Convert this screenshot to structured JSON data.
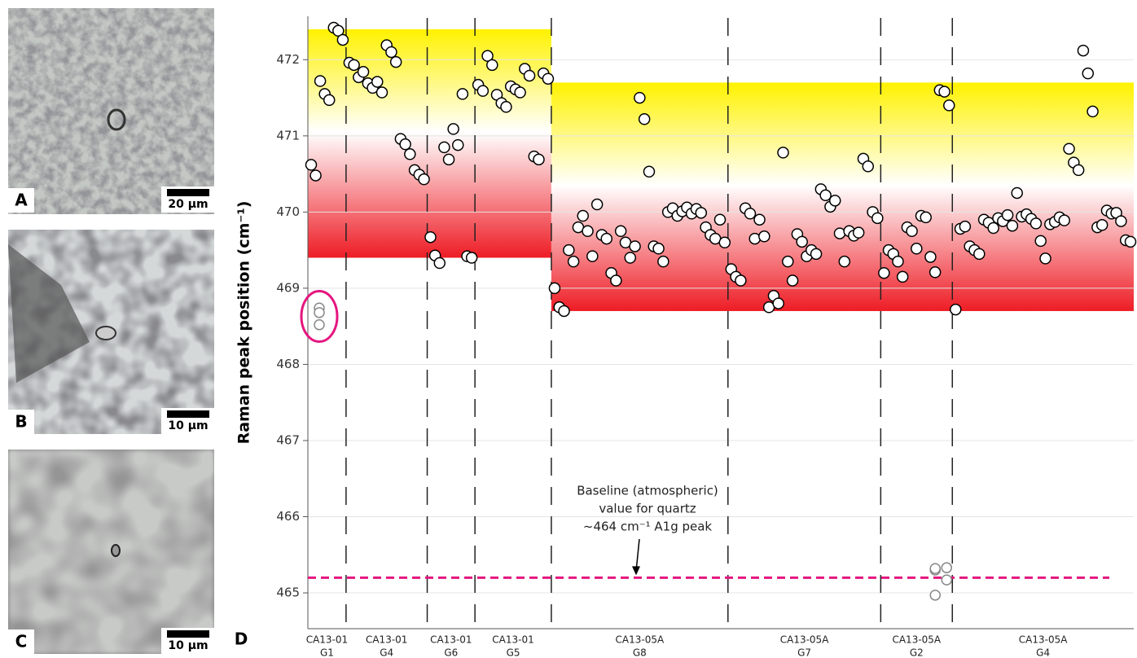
{
  "panels": [
    {
      "label": "A",
      "scale": "20 μm"
    },
    {
      "label": "B",
      "scale": "10 μm"
    },
    {
      "label": "C",
      "scale": "10 μm"
    }
  ],
  "chart_data": {
    "type": "scatter",
    "panel_label": "D",
    "y_label": "Raman peak position (cm⁻¹)",
    "ylim": [
      464.53,
      472.57
    ],
    "yticks": [
      465,
      466,
      467,
      468,
      469,
      470,
      471,
      472
    ],
    "grid": true,
    "band_colors": [
      "#fff200",
      "#ffffff",
      "#ee1c25"
    ],
    "baseline": {
      "value": 465.2,
      "color": "#e5167f",
      "label": [
        "Baseline (atmospheric)",
        "value for quartz",
        "~464 cm⁻¹ A1g peak"
      ]
    },
    "samples": [
      {
        "band": [
          469.4,
          472.4
        ],
        "groups": [
          {
            "label": "CA13-01",
            "name": "G1",
            "values": [
              470.62,
              470.48,
              471.72,
              471.55,
              471.47,
              472.42,
              472.38,
              472.26
            ],
            "outliers": [
              468.74,
              468.68,
              468.52
            ]
          },
          {
            "label": "CA13-01",
            "name": "G4",
            "values": [
              471.96,
              471.93,
              471.77,
              471.84,
              471.69,
              471.63,
              471.71,
              471.57,
              472.19,
              472.1,
              471.97,
              470.96,
              470.89,
              470.76,
              470.55,
              470.49,
              470.43
            ]
          },
          {
            "label": "CA13-01",
            "name": "G6",
            "values": [
              469.67,
              469.43,
              469.33,
              470.85,
              470.69,
              471.09,
              470.88,
              471.55,
              469.42,
              469.4
            ]
          },
          {
            "label": "CA13-01",
            "name": "G5",
            "values": [
              471.67,
              471.59,
              472.05,
              471.93,
              471.54,
              471.43,
              471.38,
              471.65,
              471.61,
              471.57,
              471.88,
              471.79,
              470.73,
              470.69,
              471.82,
              471.75
            ]
          }
        ]
      },
      {
        "band": [
          468.7,
          471.7
        ],
        "groups": [
          {
            "label": "CA13-05A",
            "name": "G8",
            "values": [
              469.0,
              468.75,
              468.7,
              469.5,
              469.35,
              469.8,
              469.95,
              469.75,
              469.42,
              470.1,
              469.7,
              469.65,
              469.2,
              469.1,
              469.75,
              469.6,
              469.4,
              469.55,
              471.5,
              471.22,
              470.53,
              469.55,
              469.52,
              469.35,
              470.0,
              470.05,
              469.95,
              470.01,
              470.06,
              469.98,
              470.04,
              469.99,
              469.8,
              469.7,
              469.65,
              469.9,
              469.6
            ]
          },
          {
            "label": "CA13-05A",
            "name": "G7",
            "values": [
              469.25,
              469.15,
              469.1,
              470.05,
              469.98,
              469.65,
              469.9,
              469.68,
              468.75,
              468.9,
              468.8,
              470.78,
              469.35,
              469.1,
              469.71,
              469.61,
              469.42,
              469.5,
              469.45,
              470.3,
              470.22,
              470.07,
              470.15,
              469.72,
              469.35,
              469.75,
              469.69,
              469.73,
              470.7,
              470.6,
              470.0,
              469.92
            ]
          },
          {
            "label": "CA13-05A",
            "name": "G2",
            "values": [
              469.2,
              469.5,
              469.45,
              469.35,
              469.15,
              469.8,
              469.75,
              469.52,
              469.95,
              469.93,
              469.41,
              469.21,
              471.6,
              471.58,
              471.4
            ],
            "outliers": [
              465.3,
              465.17,
              465.32,
              465.33,
              464.97
            ]
          },
          {
            "label": "CA13-05A",
            "name": "G4",
            "values": [
              468.72,
              469.78,
              469.81,
              469.55,
              469.5,
              469.45,
              469.9,
              469.86,
              469.79,
              469.92,
              469.88,
              469.96,
              469.82,
              470.25,
              469.94,
              469.97,
              469.91,
              469.85,
              469.62,
              469.39,
              469.84,
              469.87,
              469.93,
              469.89,
              470.83,
              470.65,
              470.55,
              472.12,
              471.82,
              471.32,
              469.8,
              469.83,
              470.02,
              469.98,
              469.99,
              469.88,
              469.63,
              469.61
            ]
          }
        ]
      }
    ]
  }
}
